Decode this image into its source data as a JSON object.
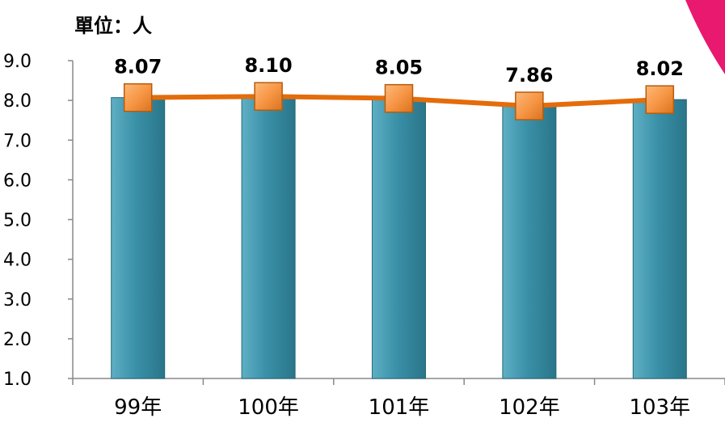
{
  "unit_label": "單位：人",
  "colors": {
    "bar": "#31869B",
    "bar_light": "#5FAFC4",
    "line": "#E46C0A",
    "marker": "#F79646",
    "marker_edge": "#B85C0A",
    "corner_accent": "#E8196E"
  },
  "chart_data": {
    "type": "bar",
    "categories": [
      "99年",
      "100年",
      "101年",
      "102年",
      "103年"
    ],
    "series": [
      {
        "type": "bar",
        "values": [
          8.07,
          8.1,
          8.05,
          7.86,
          8.02
        ]
      },
      {
        "type": "line",
        "values": [
          8.07,
          8.1,
          8.05,
          7.86,
          8.02
        ]
      }
    ],
    "data_labels": [
      "8.07",
      "8.10",
      "8.05",
      "7.86",
      "8.02"
    ],
    "y_ticks": [
      "9.0",
      "8.0",
      "7.0",
      "6.0",
      "5.0",
      "4.0",
      "3.0",
      "2.0",
      "1.0"
    ],
    "ylim": [
      1.0,
      9.0
    ],
    "grid": false,
    "legend": "none",
    "xlabel": "",
    "ylabel": ""
  }
}
